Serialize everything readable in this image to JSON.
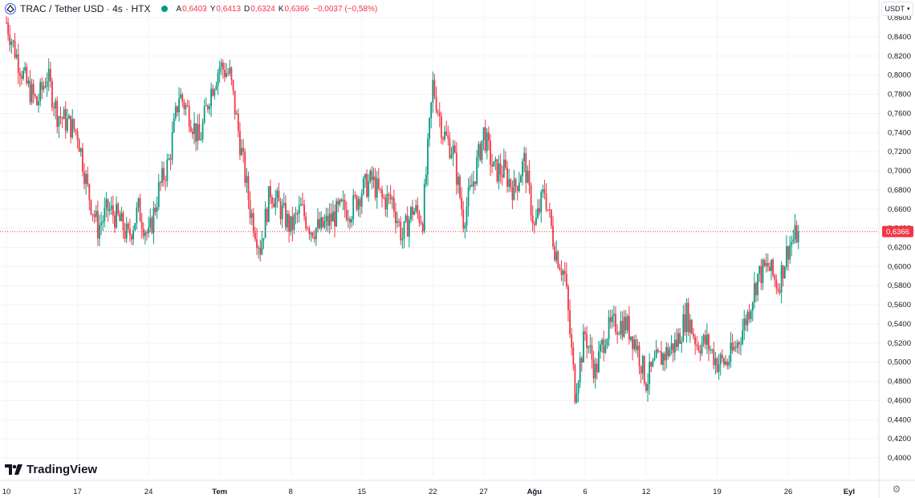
{
  "header": {
    "symbol": "TRAC / Tether USD · 4s · HTX",
    "ohlc": [
      {
        "k": "A",
        "v": "0,6403"
      },
      {
        "k": "Y",
        "v": "0,6413"
      },
      {
        "k": "D",
        "v": "0,6324"
      },
      {
        "k": "K",
        "v": "0,6366"
      },
      {
        "k": "",
        "v": "−0,0037 (−0,58%)"
      }
    ]
  },
  "currency_button": {
    "label": "USDT"
  },
  "brand": {
    "name": "TradingView"
  },
  "colors": {
    "up": "#089981",
    "down": "#f23645",
    "grid": "#f0f3fa",
    "text": "#131722"
  },
  "chart_data": {
    "type": "candlestick",
    "ylim": [
      0.4,
      0.88
    ],
    "y_ticks": [
      "0,4000",
      "0,4200",
      "0,4400",
      "0,4600",
      "0,4800",
      "0,5000",
      "0,5200",
      "0,5400",
      "0,5600",
      "0,5800",
      "0,6000",
      "0,6200",
      "0,6400",
      "0,6600",
      "0,6800",
      "0,7000",
      "0,7200",
      "0,7400",
      "0,7600",
      "0,7800",
      "0,8000",
      "0,8200",
      "0,8400",
      "0,8600"
    ],
    "x_ticks": [
      {
        "label": "10",
        "day": 0
      },
      {
        "label": "17",
        "day": 7
      },
      {
        "label": "24",
        "day": 14
      },
      {
        "label": "Tem",
        "day": 21,
        "bold": true
      },
      {
        "label": "8",
        "day": 28
      },
      {
        "label": "15",
        "day": 35
      },
      {
        "label": "22",
        "day": 42
      },
      {
        "label": "27",
        "day": 47
      },
      {
        "label": "Ağu",
        "day": 52,
        "bold": true
      },
      {
        "label": "6",
        "day": 57
      },
      {
        "label": "12",
        "day": 63
      },
      {
        "label": "19",
        "day": 70
      },
      {
        "label": "26",
        "day": 77
      },
      {
        "label": "Eyl",
        "day": 83,
        "bold": true
      }
    ],
    "last_price": {
      "value": 0.6366,
      "label": "0,6366"
    },
    "close_path": [
      [
        0,
        0.855
      ],
      [
        1,
        0.82
      ],
      [
        2,
        0.79
      ],
      [
        3,
        0.77
      ],
      [
        4,
        0.8
      ],
      [
        5,
        0.76
      ],
      [
        6,
        0.75
      ],
      [
        7,
        0.74
      ],
      [
        8,
        0.68
      ],
      [
        9,
        0.64
      ],
      [
        10,
        0.66
      ],
      [
        11,
        0.65
      ],
      [
        12,
        0.63
      ],
      [
        13,
        0.66
      ],
      [
        14,
        0.63
      ],
      [
        15,
        0.68
      ],
      [
        16,
        0.71
      ],
      [
        17,
        0.78
      ],
      [
        18,
        0.76
      ],
      [
        19,
        0.73
      ],
      [
        20,
        0.78
      ],
      [
        21,
        0.81
      ],
      [
        22,
        0.8
      ],
      [
        23,
        0.73
      ],
      [
        24,
        0.66
      ],
      [
        25,
        0.62
      ],
      [
        26,
        0.68
      ],
      [
        27,
        0.66
      ],
      [
        28,
        0.64
      ],
      [
        29,
        0.66
      ],
      [
        30,
        0.64
      ],
      [
        31,
        0.64
      ],
      [
        32,
        0.65
      ],
      [
        33,
        0.66
      ],
      [
        34,
        0.66
      ],
      [
        35,
        0.68
      ],
      [
        36,
        0.69
      ],
      [
        37,
        0.67
      ],
      [
        38,
        0.67
      ],
      [
        39,
        0.63
      ],
      [
        40,
        0.66
      ],
      [
        41,
        0.65
      ],
      [
        42,
        0.79
      ],
      [
        43,
        0.74
      ],
      [
        44,
        0.72
      ],
      [
        45,
        0.65
      ],
      [
        46,
        0.69
      ],
      [
        47,
        0.74
      ],
      [
        48,
        0.7
      ],
      [
        49,
        0.7
      ],
      [
        50,
        0.68
      ],
      [
        51,
        0.71
      ],
      [
        52,
        0.64
      ],
      [
        53,
        0.68
      ],
      [
        54,
        0.62
      ],
      [
        55,
        0.59
      ],
      [
        56,
        0.47
      ],
      [
        57,
        0.53
      ],
      [
        58,
        0.49
      ],
      [
        59,
        0.53
      ],
      [
        60,
        0.54
      ],
      [
        61,
        0.54
      ],
      [
        62,
        0.52
      ],
      [
        63,
        0.48
      ],
      [
        64,
        0.5
      ],
      [
        65,
        0.51
      ],
      [
        66,
        0.52
      ],
      [
        67,
        0.55
      ],
      [
        68,
        0.52
      ],
      [
        69,
        0.52
      ],
      [
        70,
        0.5
      ],
      [
        71,
        0.5
      ],
      [
        72,
        0.52
      ],
      [
        73,
        0.55
      ],
      [
        74,
        0.59
      ],
      [
        75,
        0.6
      ],
      [
        76,
        0.58
      ],
      [
        77,
        0.62
      ],
      [
        78,
        0.6366
      ]
    ]
  }
}
